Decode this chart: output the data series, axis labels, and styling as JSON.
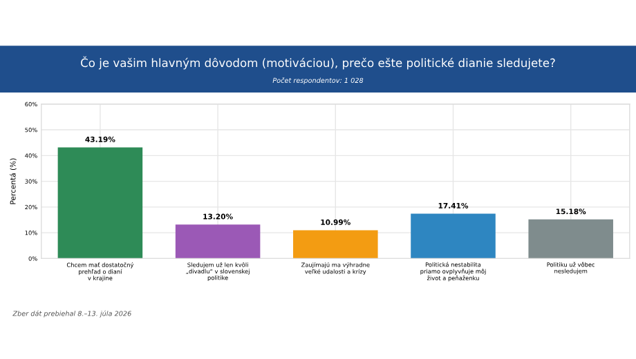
{
  "chart_data": {
    "type": "bar",
    "title": "Čo je vašim hlavným dôvodom (motiváciou), prečo ešte politické dianie sledujete?",
    "subtitle": "Počet respondentov: 1 028",
    "ylabel": "Percentá (%)",
    "categories": [
      "Chcem mať dostatočný\nprehľad o dianí\nv krajine",
      "Sledujem už len kvôli\n„divadlu“ v slovenskej\npolitike",
      "Zaujímajú ma výhradne\nveľké udalosti a krízy",
      "Politická nestabilita\npriamo ovplyvňuje môj\nživot a peňaženku",
      "Politiku už vôbec\nnesledujem"
    ],
    "values": [
      43.19,
      13.2,
      10.99,
      17.41,
      15.18
    ],
    "colors": [
      "#2e8b57",
      "#9b59b6",
      "#f39c12",
      "#2e86c1",
      "#7f8c8d"
    ],
    "value_labels": [
      "43.19%",
      "13.20%",
      "10.99%",
      "17.41%",
      "15.18%"
    ],
    "ylim": [
      0,
      60
    ],
    "yticks": [
      {
        "value": 0,
        "label": "0%"
      },
      {
        "value": 10,
        "label": "10%"
      },
      {
        "value": 20,
        "label": "20%"
      },
      {
        "value": 30,
        "label": "30%"
      },
      {
        "value": 40,
        "label": "40%"
      },
      {
        "value": 50,
        "label": "50%"
      },
      {
        "value": 60,
        "label": "60%"
      }
    ],
    "grid": true,
    "annotations": [
      "Zber dát prebiehal 8.–13. júla 2026"
    ]
  }
}
